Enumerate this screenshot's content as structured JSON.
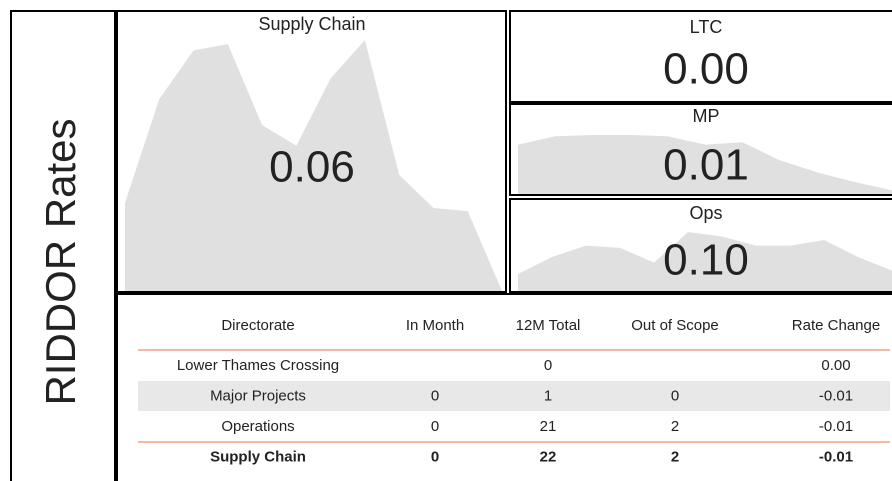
{
  "side_title": "RIDDOR Rates",
  "cards": [
    {
      "title": "Supply Chain",
      "value": "0.06",
      "trend": [
        85,
        185,
        232,
        238,
        160,
        140,
        205,
        242,
        112,
        80,
        77,
        0
      ]
    },
    {
      "title": "LTC",
      "value": "0.00",
      "trend": null
    },
    {
      "title": "MP",
      "value": "0.01",
      "trend": [
        41,
        48,
        49,
        49,
        48,
        41,
        43,
        28,
        18,
        10,
        3
      ]
    },
    {
      "title": "Ops",
      "value": "0.10",
      "trend": [
        15,
        30,
        40,
        38,
        25,
        52,
        48,
        40,
        40,
        45,
        30,
        18
      ]
    }
  ],
  "table": {
    "header": [
      "Directorate",
      "In Month",
      "12M Total",
      "Out of Scope",
      "Rate Change"
    ],
    "rows": [
      [
        "Lower Thames Crossing",
        null,
        "0",
        null,
        "0.00"
      ],
      [
        "Major Projects",
        "0",
        "1",
        "0",
        "-0.01"
      ],
      [
        "Operations",
        "0",
        "21",
        "2",
        "-0.01"
      ],
      [
        "Supply Chain",
        "0",
        "22",
        "2",
        "-0.01"
      ]
    ]
  }
}
